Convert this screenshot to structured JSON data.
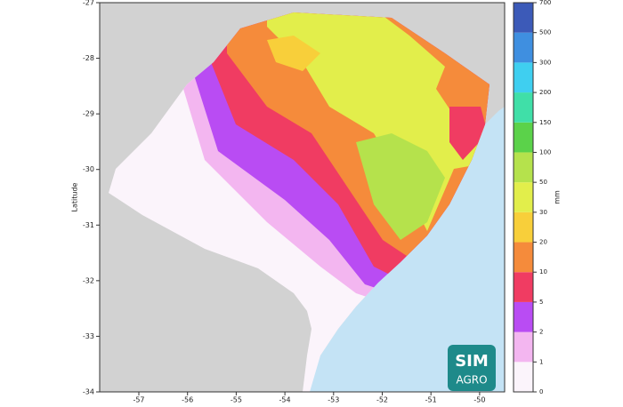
{
  "map": {
    "y_label": "Latitude",
    "x_ticks": [
      "-57",
      "-56",
      "-55",
      "-54",
      "-53",
      "-52",
      "-51",
      "-50"
    ],
    "y_ticks": [
      "-27",
      "-28",
      "-29",
      "-30",
      "-31",
      "-32",
      "-33",
      "-34"
    ],
    "colorbar": {
      "unit": "mm",
      "labels": [
        "0",
        "1",
        "2",
        "5",
        "10",
        "20",
        "30",
        "50",
        "100",
        "150",
        "200",
        "300",
        "500",
        "700"
      ],
      "colors": [
        "#fbf4fb",
        "#f3b6f0",
        "#b94cf3",
        "#f03c62",
        "#f58b3b",
        "#f8cf3a",
        "#e2ee4b",
        "#b5e24c",
        "#5bd24a",
        "#40dfa8",
        "#3fcff0",
        "#3f8fe0",
        "#3c5ab8"
      ]
    },
    "logo": {
      "line1": "SIM",
      "line2": "AGRO"
    }
  }
}
